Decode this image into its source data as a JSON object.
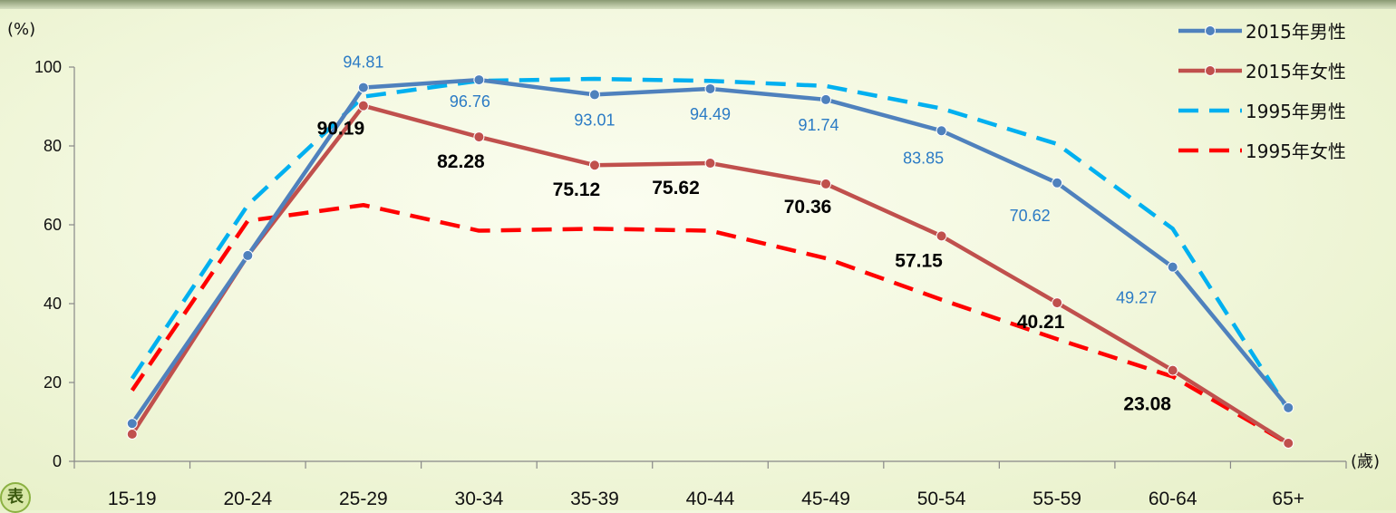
{
  "chart_data": {
    "type": "line",
    "ylabel": "(%)",
    "xlabel": "(歲)",
    "ylim": [
      0,
      100
    ],
    "yticks": [
      0,
      20,
      40,
      60,
      80,
      100
    ],
    "categories": [
      "15-19",
      "20-24",
      "25-29",
      "30-34",
      "35-39",
      "40-44",
      "45-49",
      "50-54",
      "55-59",
      "60-64",
      "65+"
    ],
    "legend_position": "top-right",
    "series": [
      {
        "name": "2015年男性",
        "style": "solid-marker",
        "color": "#4f81bd",
        "values": [
          9.6,
          52.2,
          94.81,
          96.76,
          93.01,
          94.49,
          91.74,
          83.85,
          70.62,
          49.27,
          13.6
        ],
        "labels": [
          "",
          "",
          "94.81",
          "96.76",
          "93.01",
          "94.49",
          "91.74",
          "83.85",
          "70.62",
          "49.27",
          ""
        ]
      },
      {
        "name": "2015年女性",
        "style": "solid-marker",
        "color": "#c0504d",
        "values": [
          6.9,
          52.2,
          90.19,
          82.28,
          75.12,
          75.62,
          70.36,
          57.15,
          40.21,
          23.08,
          4.6
        ],
        "labels": [
          "",
          "",
          "90.19",
          "82.28",
          "75.12",
          "75.62",
          "70.36",
          "57.15",
          "40.21",
          "23.08",
          ""
        ]
      },
      {
        "name": "1995年男性",
        "style": "dashed",
        "color": "#00b0f0",
        "values": [
          21,
          65,
          92.5,
          96.5,
          97,
          96.5,
          95.2,
          89.5,
          80.5,
          59,
          13
        ]
      },
      {
        "name": "1995年女性",
        "style": "dashed",
        "color": "#ff0000",
        "values": [
          18,
          61,
          65,
          58.5,
          59,
          58.5,
          51.5,
          41,
          31,
          21.5,
          4.5
        ]
      }
    ]
  },
  "badge_text": "表"
}
